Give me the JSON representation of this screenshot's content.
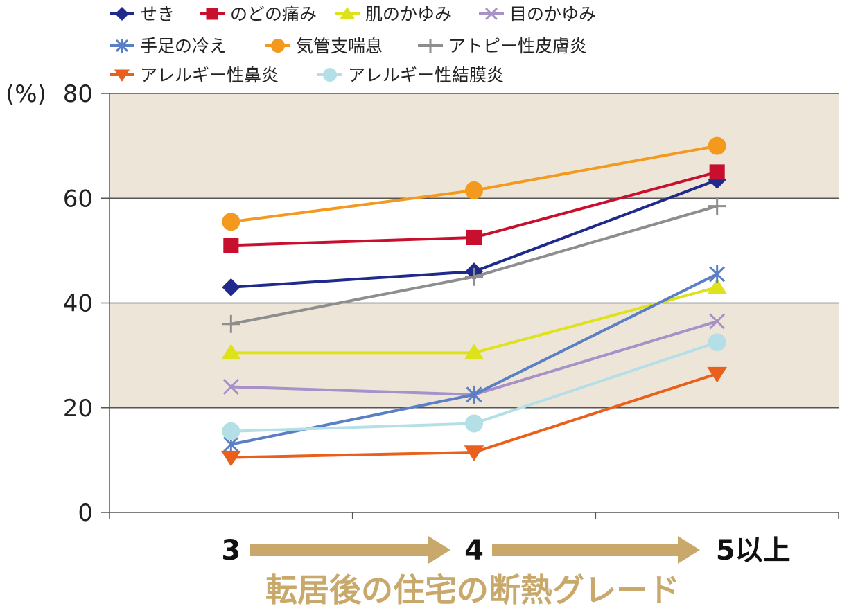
{
  "chart_data": {
    "type": "line",
    "categories": [
      "3",
      "4",
      "5以上"
    ],
    "xlabel": "転居後の住宅の断熱グレード",
    "ylabel": "(%)",
    "ylim": [
      0,
      80
    ],
    "yticks": [
      "0",
      "20",
      "40",
      "60",
      "80"
    ],
    "grid": true,
    "legend_position": "top",
    "band_color": "#ede6d8",
    "series": [
      {
        "name": "せき",
        "values": [
          43,
          46,
          63.5
        ],
        "color": "#1f2a8c",
        "marker": "diamond"
      },
      {
        "name": "のどの痛み",
        "values": [
          51,
          52.5,
          65
        ],
        "color": "#c8102e",
        "marker": "square"
      },
      {
        "name": "肌のかゆみ",
        "values": [
          30.5,
          30.5,
          43
        ],
        "color": "#dde21a",
        "marker": "triangle-up"
      },
      {
        "name": "目のかゆみ",
        "values": [
          24,
          22.5,
          36.5
        ],
        "color": "#a890c8",
        "marker": "x"
      },
      {
        "name": "手足の冷え",
        "values": [
          13,
          22.5,
          45.5
        ],
        "color": "#5b7fc4",
        "marker": "asterisk"
      },
      {
        "name": "気管支喘息",
        "values": [
          55.5,
          61.5,
          70
        ],
        "color": "#f39a1e",
        "marker": "circle"
      },
      {
        "name": "アトピー性皮膚炎",
        "values": [
          36,
          45,
          58.5
        ],
        "color": "#8e8e8e",
        "marker": "plus"
      },
      {
        "name": "アレルギー性鼻炎",
        "values": [
          10.5,
          11.5,
          26.5
        ],
        "color": "#e8601c",
        "marker": "triangle-down"
      },
      {
        "name": "アレルギー性結膜炎",
        "values": [
          15.5,
          17,
          32.5
        ],
        "color": "#b4dfe6",
        "marker": "circle"
      }
    ]
  }
}
